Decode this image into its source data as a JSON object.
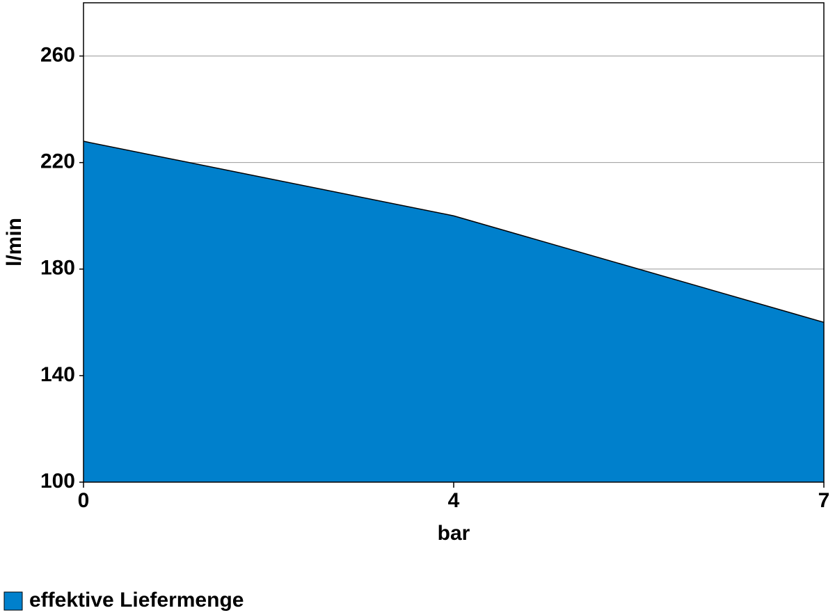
{
  "chart_data": {
    "type": "area",
    "x_label": "bar",
    "y_label": "l/min",
    "categories": [
      "0",
      "4",
      "7"
    ],
    "series": [
      {
        "name": "effektive Liefermenge",
        "color": "#0080cc",
        "values": [
          228,
          200,
          160
        ]
      }
    ],
    "ylim": [
      100,
      280
    ],
    "yticks": [
      100,
      140,
      180,
      220,
      260
    ],
    "grid": true,
    "legend": "bottom-left"
  }
}
